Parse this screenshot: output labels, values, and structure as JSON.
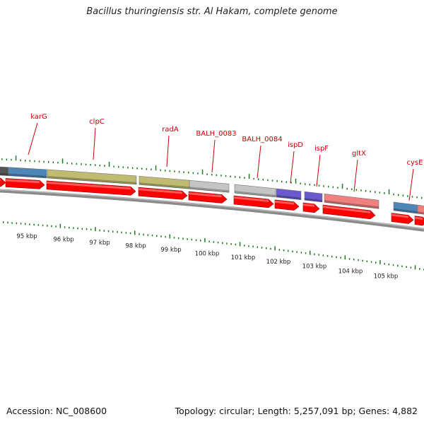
{
  "title": "Bacillus thuringiensis str. Al Hakam, complete genome",
  "footer": {
    "accession": "Accession: NC_008600",
    "summary": "Topology: circular; Length: 5,257,091 bp; Genes: 4,882"
  },
  "colors": {
    "label": "#cc0000",
    "tick": "#1f7a1f",
    "backbone": "#8a8a8a",
    "cds": "#ff0000",
    "blue": "#4f86b8",
    "olive": "#bfbb70",
    "gray": "#c4c4c4",
    "purple": "#6a5acd",
    "pink": "#f08080",
    "dark": "#555555"
  },
  "kbp_labels": [
    "95 kbp",
    "96 kbp",
    "97 kbp",
    "98 kbp",
    "99 kbp",
    "100 kbp",
    "101 kbp",
    "102 kbp",
    "103 kbp",
    "104 kbp",
    "105 kbp"
  ],
  "gene_labels": [
    "karG",
    "clpC",
    "radA",
    "BALH_0083",
    "BALH_0084",
    "ispD",
    "ispF",
    "gltX",
    "cysE"
  ]
}
